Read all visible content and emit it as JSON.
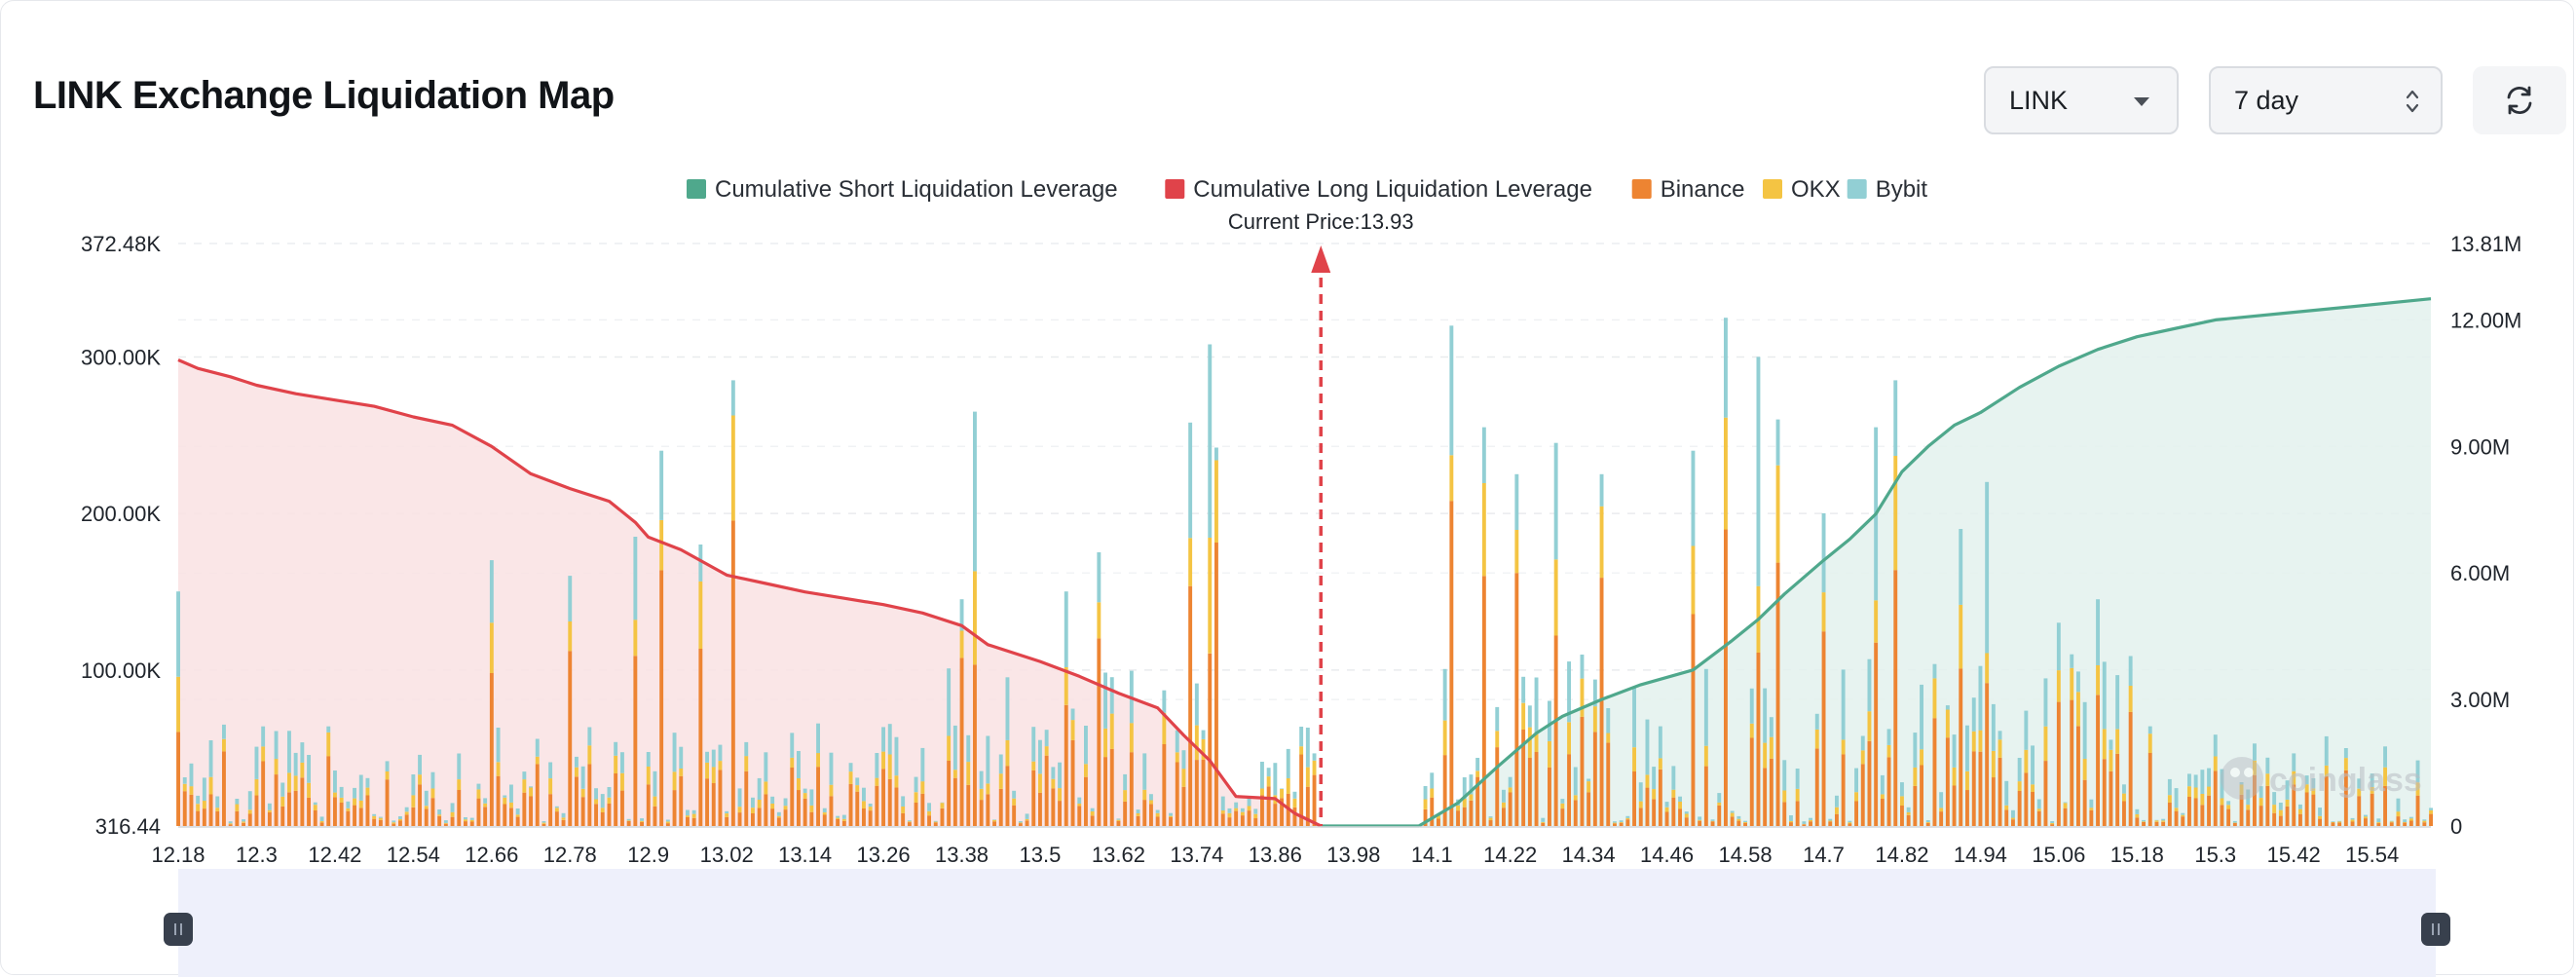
{
  "header": {
    "title": "LINK Exchange Liquidation Map",
    "coin_select": "LINK",
    "range_select": "7 day"
  },
  "watermark": "coinglass",
  "chart_data": {
    "type": "bar",
    "title": "LINK Exchange Liquidation Map",
    "current_price_label": "Current Price:13.93",
    "current_price": 13.93,
    "x_range": [
      12.18,
      15.63
    ],
    "bar_step": 0.01,
    "x_tick_labels": [
      "12.18",
      "12.3",
      "12.42",
      "12.54",
      "12.66",
      "12.78",
      "12.9",
      "13.02",
      "13.14",
      "13.26",
      "13.38",
      "13.5",
      "13.62",
      "13.74",
      "13.86",
      "13.98",
      "14.1",
      "14.22",
      "14.34",
      "14.46",
      "14.58",
      "14.7",
      "14.82",
      "14.94",
      "15.06",
      "15.18",
      "15.3",
      "15.42",
      "15.54"
    ],
    "y_left": {
      "min": 316.44,
      "max": 372480,
      "tick_values": [
        316.44,
        100000,
        200000,
        300000,
        372480
      ],
      "tick_labels": [
        "316.44",
        "100.00K",
        "200.00K",
        "300.00K",
        "372.48K"
      ]
    },
    "y_right": {
      "min": 0,
      "max": 13810000,
      "tick_values": [
        0,
        3000000,
        6000000,
        9000000,
        12000000,
        13810000
      ],
      "tick_labels": [
        "0",
        "3.00M",
        "6.00M",
        "9.00M",
        "12.00M",
        "13.81M"
      ]
    },
    "legend": [
      {
        "name": "Cumulative Short Liquidation Leverage",
        "color": "#4fa88c"
      },
      {
        "name": "Cumulative Long Liquidation Leverage",
        "color": "#e0434a"
      },
      {
        "name": "Binance",
        "color": "#ed8432"
      },
      {
        "name": "OKX",
        "color": "#f4c443"
      },
      {
        "name": "Bybit",
        "color": "#92cfd4"
      }
    ],
    "cumulative_long": {
      "name": "Cumulative Long Liquidation Leverage",
      "color": "#e0434a",
      "points": [
        [
          12.18,
          11.05
        ],
        [
          12.21,
          10.85
        ],
        [
          12.26,
          10.65
        ],
        [
          12.3,
          10.45
        ],
        [
          12.36,
          10.25
        ],
        [
          12.42,
          10.1
        ],
        [
          12.48,
          9.95
        ],
        [
          12.54,
          9.7
        ],
        [
          12.6,
          9.5
        ],
        [
          12.66,
          9.0
        ],
        [
          12.72,
          8.35
        ],
        [
          12.78,
          8.0
        ],
        [
          12.84,
          7.7
        ],
        [
          12.88,
          7.2
        ],
        [
          12.9,
          6.85
        ],
        [
          12.95,
          6.55
        ],
        [
          13.02,
          5.95
        ],
        [
          13.08,
          5.75
        ],
        [
          13.14,
          5.55
        ],
        [
          13.2,
          5.4
        ],
        [
          13.26,
          5.25
        ],
        [
          13.32,
          5.05
        ],
        [
          13.38,
          4.75
        ],
        [
          13.42,
          4.3
        ],
        [
          13.5,
          3.9
        ],
        [
          13.56,
          3.55
        ],
        [
          13.62,
          3.15
        ],
        [
          13.68,
          2.8
        ],
        [
          13.72,
          2.15
        ],
        [
          13.76,
          1.55
        ],
        [
          13.8,
          0.7
        ],
        [
          13.86,
          0.65
        ],
        [
          13.89,
          0.3
        ],
        [
          13.93,
          0
        ]
      ]
    },
    "cumulative_short": {
      "name": "Cumulative Short Liquidation Leverage",
      "color": "#4fa88c",
      "points": [
        [
          13.93,
          0
        ],
        [
          14.08,
          0
        ],
        [
          14.14,
          0.55
        ],
        [
          14.2,
          1.4
        ],
        [
          14.26,
          2.2
        ],
        [
          14.3,
          2.6
        ],
        [
          14.36,
          3.0
        ],
        [
          14.42,
          3.35
        ],
        [
          14.5,
          3.7
        ],
        [
          14.56,
          4.4
        ],
        [
          14.6,
          4.9
        ],
        [
          14.64,
          5.5
        ],
        [
          14.7,
          6.3
        ],
        [
          14.74,
          6.8
        ],
        [
          14.78,
          7.4
        ],
        [
          14.82,
          8.4
        ],
        [
          14.86,
          9.0
        ],
        [
          14.9,
          9.5
        ],
        [
          14.94,
          9.8
        ],
        [
          15.0,
          10.4
        ],
        [
          15.06,
          10.9
        ],
        [
          15.12,
          11.3
        ],
        [
          15.18,
          11.6
        ],
        [
          15.24,
          11.8
        ],
        [
          15.3,
          12.0
        ],
        [
          15.4,
          12.15
        ],
        [
          15.5,
          12.3
        ],
        [
          15.63,
          12.5
        ]
      ]
    }
  }
}
